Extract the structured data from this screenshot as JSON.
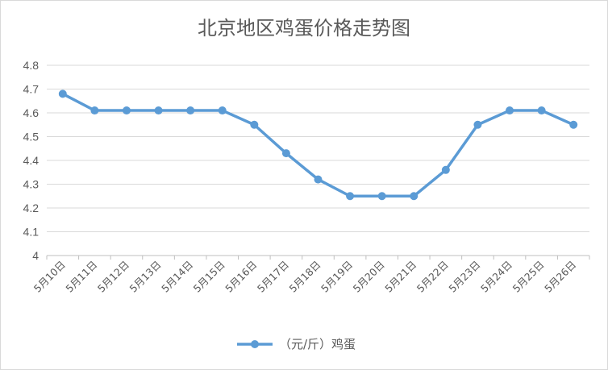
{
  "chart_data": {
    "type": "line",
    "title": "北京地区鸡蛋价格走势图",
    "xlabel": "",
    "ylabel": "",
    "categories": [
      "5月10日",
      "5月11日",
      "5月12日",
      "5月13日",
      "5月14日",
      "5月15日",
      "5月16日",
      "5月17日",
      "5月18日",
      "5月19日",
      "5月20日",
      "5月21日",
      "5月22日",
      "5月23日",
      "5月24日",
      "5月25日",
      "5月26日"
    ],
    "series": [
      {
        "name": "（元/斤）鸡蛋",
        "values": [
          4.68,
          4.61,
          4.61,
          4.61,
          4.61,
          4.61,
          4.55,
          4.43,
          4.32,
          4.25,
          4.25,
          4.25,
          4.36,
          4.55,
          4.61,
          4.61,
          4.55
        ]
      }
    ],
    "yticks": [
      "4",
      "4.1",
      "4.2",
      "4.3",
      "4.4",
      "4.5",
      "4.6",
      "4.7",
      "4.8"
    ],
    "ylim": [
      4,
      4.8
    ],
    "grid": true,
    "legend_position": "bottom",
    "colors": {
      "series": "#5b9bd5",
      "grid": "#d9d9d9",
      "text": "#595959"
    }
  }
}
